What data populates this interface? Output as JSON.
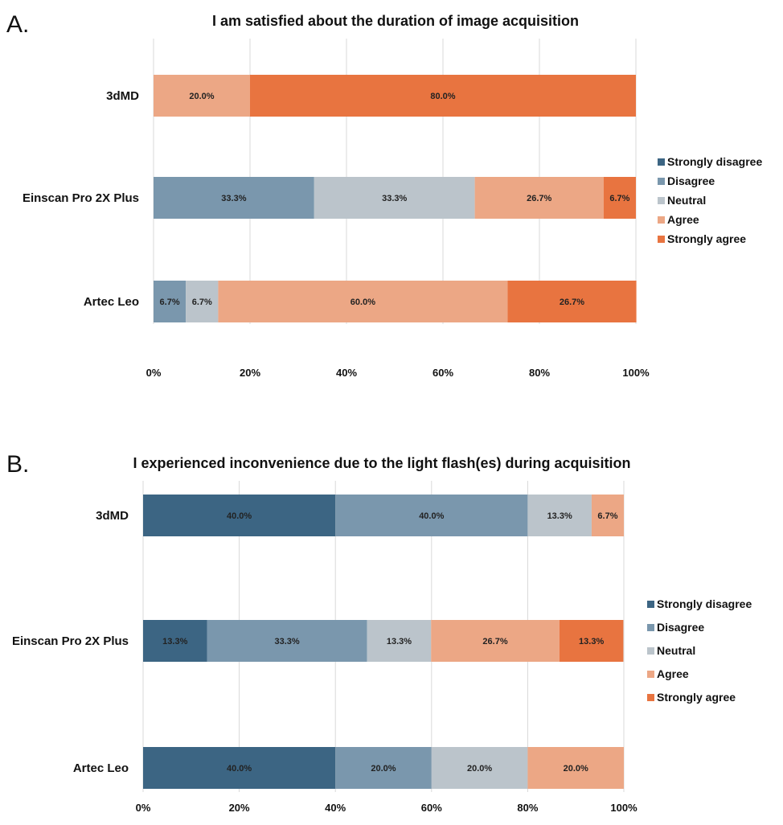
{
  "chart_data": [
    {
      "type": "bar",
      "orientation": "horizontal",
      "stacked": true,
      "panel_label": "A.",
      "title": "I am satisfied about the duration of image acquisition",
      "categories": [
        "3dMD",
        "Einscan Pro 2X Plus",
        "Artec Leo"
      ],
      "series": [
        {
          "name": "Strongly disagree",
          "values": [
            0,
            0,
            0
          ],
          "labels": [
            "",
            "",
            ""
          ]
        },
        {
          "name": "Disagree",
          "values": [
            0,
            33.3,
            6.7
          ],
          "labels": [
            "",
            "33.3%",
            "6.7%"
          ]
        },
        {
          "name": "Neutral",
          "values": [
            0,
            33.3,
            6.7
          ],
          "labels": [
            "",
            "33.3%",
            "6.7%"
          ]
        },
        {
          "name": "Agree",
          "values": [
            20.0,
            26.7,
            60.0
          ],
          "labels": [
            "20.0%",
            "26.7%",
            "60.0%"
          ]
        },
        {
          "name": "Strongly agree",
          "values": [
            80.0,
            6.7,
            26.7
          ],
          "labels": [
            "80.0%",
            "6.7%",
            "26.7%"
          ]
        }
      ],
      "xlim": [
        0,
        100
      ],
      "xticks": [
        "0%",
        "20%",
        "40%",
        "60%",
        "80%",
        "100%"
      ],
      "grid": true,
      "legend": "right"
    },
    {
      "type": "bar",
      "orientation": "horizontal",
      "stacked": true,
      "panel_label": "B.",
      "title": "I experienced inconvenience due to the light flash(es) during acquisition",
      "categories": [
        "3dMD",
        "Einscan Pro 2X Plus",
        "Artec Leo"
      ],
      "series": [
        {
          "name": "Strongly disagree",
          "values": [
            40.0,
            13.3,
            40.0
          ],
          "labels": [
            "40.0%",
            "13.3%",
            "40.0%"
          ]
        },
        {
          "name": "Disagree",
          "values": [
            40.0,
            33.3,
            20.0
          ],
          "labels": [
            "40.0%",
            "33.3%",
            "20.0%"
          ]
        },
        {
          "name": "Neutral",
          "values": [
            13.3,
            13.3,
            20.0
          ],
          "labels": [
            "13.3%",
            "13.3%",
            "20.0%"
          ]
        },
        {
          "name": "Agree",
          "values": [
            6.7,
            26.7,
            20.0
          ],
          "labels": [
            "6.7%",
            "26.7%",
            "20.0%"
          ]
        },
        {
          "name": "Strongly agree",
          "values": [
            0,
            13.3,
            0
          ],
          "labels": [
            "",
            "13.3%",
            ""
          ]
        }
      ],
      "xlim": [
        0,
        100
      ],
      "xticks": [
        "0%",
        "20%",
        "40%",
        "60%",
        "80%",
        "100%"
      ],
      "grid": true,
      "legend": "right"
    }
  ],
  "colors": {
    "Strongly disagree": "#3c6583",
    "Disagree": "#7a97ad",
    "Neutral": "#bbc4cb",
    "Agree": "#eca785",
    "Strongly agree": "#e87440"
  }
}
